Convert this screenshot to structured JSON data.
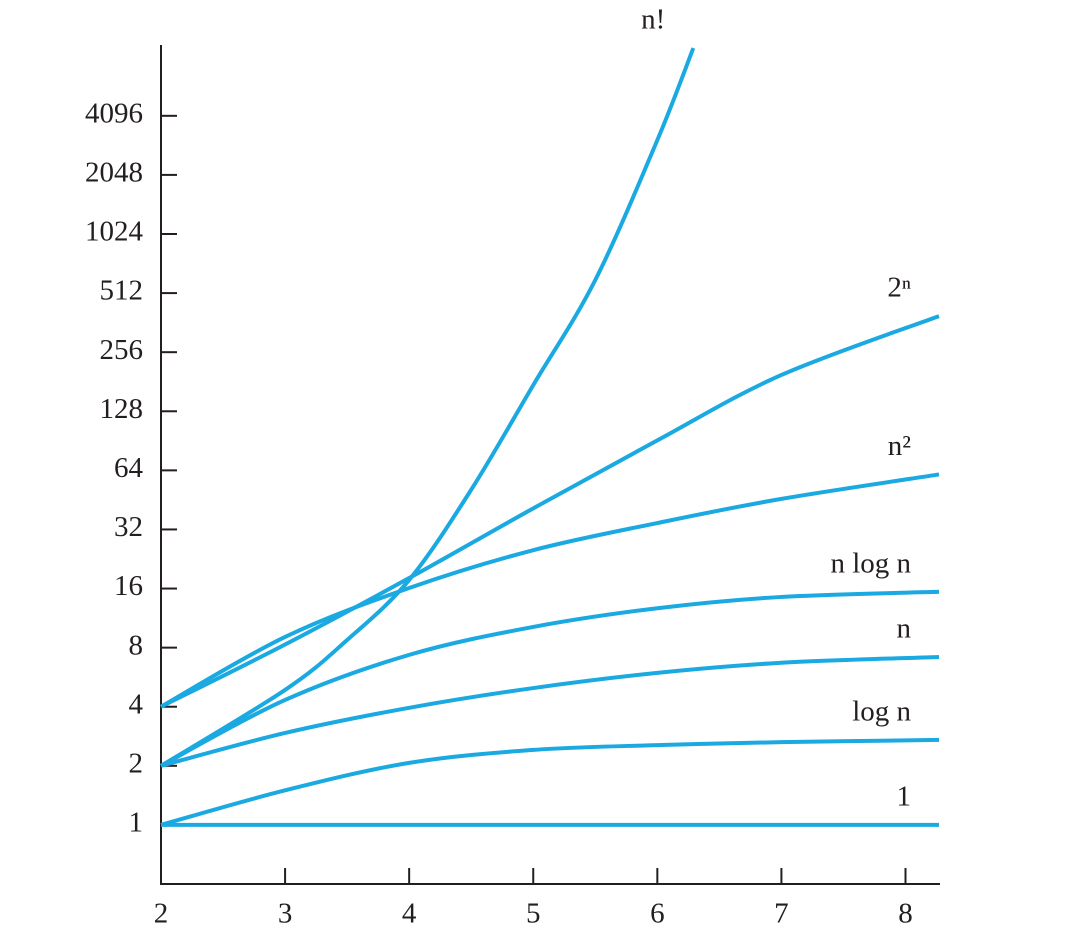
{
  "chart_data": {
    "type": "line",
    "yscale": "log",
    "xlim": [
      2,
      8.27
    ],
    "ylim": [
      0.5,
      9400
    ],
    "xticks": [
      2,
      3,
      4,
      5,
      6,
      7,
      8
    ],
    "yticks": [
      1,
      2,
      4,
      8,
      16,
      32,
      64,
      128,
      256,
      512,
      1024,
      2048,
      4096
    ],
    "series": [
      {
        "name": "n!",
        "color": "#1ba9e1",
        "x": [
          2,
          3,
          3.5,
          4,
          4.5,
          5,
          5.5,
          6,
          6.29
        ],
        "values": [
          2,
          4.87,
          8.75,
          17.7,
          51,
          174,
          597,
          3080,
          9070
        ]
      },
      {
        "name": "2ⁿ",
        "color": "#1ba9e1",
        "x": [
          2,
          3,
          4,
          5,
          6,
          7,
          8.27
        ],
        "values": [
          4,
          8.3,
          18.1,
          41,
          91,
          196,
          391
        ]
      },
      {
        "name": "n²",
        "color": "#1ba9e1",
        "x": [
          2,
          3,
          4,
          5,
          6,
          7,
          8.27
        ],
        "values": [
          4,
          9.07,
          16.1,
          25.1,
          34.5,
          45.8,
          61
        ]
      },
      {
        "name": "n log n",
        "color": "#1ba9e1",
        "x": [
          2,
          3,
          4,
          5,
          6,
          7,
          8.27
        ],
        "values": [
          2,
          4.33,
          7.35,
          10.2,
          12.7,
          14.5,
          15.4
        ]
      },
      {
        "name": "n",
        "color": "#1ba9e1",
        "x": [
          2,
          3,
          4,
          5,
          6,
          7,
          8.27
        ],
        "values": [
          2,
          2.94,
          3.95,
          4.98,
          5.95,
          6.7,
          7.17
        ]
      },
      {
        "name": "log n",
        "color": "#1ba9e1",
        "x": [
          2,
          3,
          4,
          5,
          6,
          7,
          8.27
        ],
        "values": [
          1,
          1.5,
          2.07,
          2.41,
          2.55,
          2.64,
          2.71
        ]
      },
      {
        "name": "1",
        "color": "#1ba9e1",
        "x": [
          2,
          3,
          4,
          5,
          6,
          7,
          8.27
        ],
        "values": [
          1,
          1,
          1,
          1,
          1,
          1,
          1
        ]
      }
    ]
  }
}
